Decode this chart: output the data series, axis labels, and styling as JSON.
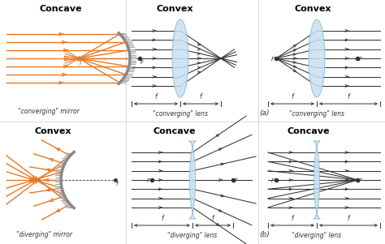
{
  "orange": "#e87828",
  "dark": "#333333",
  "gray_mirror": "#888888",
  "gray_fill": "#aaaaaa",
  "lens_blue": "#c8dff0",
  "lens_edge": "#88b8d0",
  "white": "#ffffff",
  "titles": {
    "tl": "Concave",
    "tm": "Convex",
    "tr": "Convex",
    "bl": "Convex",
    "bm": "Concave",
    "br": "Concave"
  },
  "subs": {
    "tl": "\"converging\" mirror",
    "tm": "\"converging\" lens",
    "tr": "\"converging\" lens",
    "bl": "\"diverging\" mirror",
    "bm": "\"diverging\" lens",
    "br": "\"diverging\" lens"
  },
  "label_a": "(a)",
  "label_b": "(b)",
  "fig_w": 4.74,
  "fig_h": 3.01,
  "dpi": 100
}
